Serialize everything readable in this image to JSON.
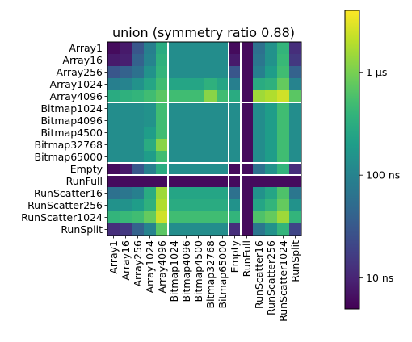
{
  "chart_data": {
    "type": "heatmap",
    "title": "union (symmetry ratio 0.88)",
    "xlabel": "",
    "ylabel": "",
    "rows": [
      "Array1",
      "Array16",
      "Array256",
      "Array1024",
      "Array4096",
      "Bitmap1024",
      "Bitmap4096",
      "Bitmap4500",
      "Bitmap32768",
      "Bitmap65000",
      "Empty",
      "RunFull",
      "RunScatter16",
      "RunScatter256",
      "RunScatter1024",
      "RunSplit"
    ],
    "columns": [
      "Array1",
      "Array16",
      "Array256",
      "Array1024",
      "Array4096",
      "Bitmap1024",
      "Bitmap4096",
      "Bitmap4500",
      "Bitmap32768",
      "Bitmap65000",
      "Empty",
      "RunFull",
      "RunScatter16",
      "RunScatter256",
      "RunScatter1024",
      "RunSplit"
    ],
    "unit": "ns",
    "values": [
      [
        6,
        8,
        30,
        90,
        300,
        130,
        130,
        130,
        130,
        130,
        6,
        6,
        60,
        150,
        400,
        12
      ],
      [
        8,
        9,
        40,
        100,
        350,
        130,
        130,
        130,
        130,
        130,
        8,
        6,
        70,
        150,
        450,
        15
      ],
      [
        30,
        40,
        60,
        150,
        400,
        130,
        130,
        130,
        130,
        130,
        30,
        6,
        90,
        200,
        500,
        40
      ],
      [
        90,
        100,
        150,
        250,
        500,
        250,
        250,
        250,
        350,
        250,
        90,
        6,
        300,
        350,
        800,
        100
      ],
      [
        300,
        350,
        400,
        500,
        700,
        500,
        500,
        500,
        1200,
        500,
        300,
        6,
        1500,
        1800,
        2500,
        700
      ],
      [
        130,
        130,
        130,
        150,
        500,
        130,
        130,
        130,
        130,
        130,
        130,
        6,
        130,
        200,
        500,
        130
      ],
      [
        130,
        130,
        130,
        150,
        500,
        130,
        130,
        130,
        130,
        130,
        130,
        6,
        130,
        200,
        500,
        130
      ],
      [
        130,
        130,
        130,
        200,
        500,
        130,
        130,
        130,
        130,
        130,
        130,
        6,
        130,
        200,
        500,
        130
      ],
      [
        130,
        130,
        130,
        300,
        1200,
        130,
        130,
        130,
        130,
        130,
        130,
        6,
        130,
        200,
        500,
        130
      ],
      [
        130,
        130,
        130,
        200,
        500,
        130,
        130,
        130,
        130,
        130,
        130,
        6,
        130,
        200,
        500,
        130
      ],
      [
        6,
        8,
        30,
        90,
        300,
        130,
        130,
        130,
        130,
        130,
        6,
        6,
        60,
        150,
        400,
        12
      ],
      [
        6,
        6,
        6,
        6,
        6,
        6,
        6,
        6,
        6,
        6,
        6,
        6,
        6,
        6,
        6,
        6
      ],
      [
        60,
        70,
        90,
        300,
        1500,
        250,
        250,
        250,
        250,
        250,
        60,
        6,
        150,
        250,
        600,
        70
      ],
      [
        150,
        150,
        200,
        350,
        1800,
        300,
        300,
        300,
        300,
        300,
        150,
        6,
        250,
        400,
        800,
        150
      ],
      [
        400,
        450,
        500,
        800,
        2500,
        500,
        500,
        500,
        500,
        500,
        400,
        6,
        600,
        800,
        1500,
        400
      ],
      [
        12,
        15,
        40,
        100,
        700,
        130,
        130,
        130,
        130,
        130,
        12,
        6,
        70,
        150,
        400,
        20
      ]
    ],
    "separators_after_row": [
      4,
      9,
      10
    ],
    "separators_after_col": [
      4,
      9,
      10
    ],
    "colormap": "viridis",
    "colorbar": {
      "range_ns": [
        5,
        4000
      ],
      "scale": "log",
      "ticks": [
        {
          "value": 10,
          "label": "10 ns"
        },
        {
          "value": 100,
          "label": "100 ns"
        },
        {
          "value": 1000,
          "label": "1 µs"
        }
      ]
    },
    "grid": false,
    "legend": "colorbar-right"
  }
}
